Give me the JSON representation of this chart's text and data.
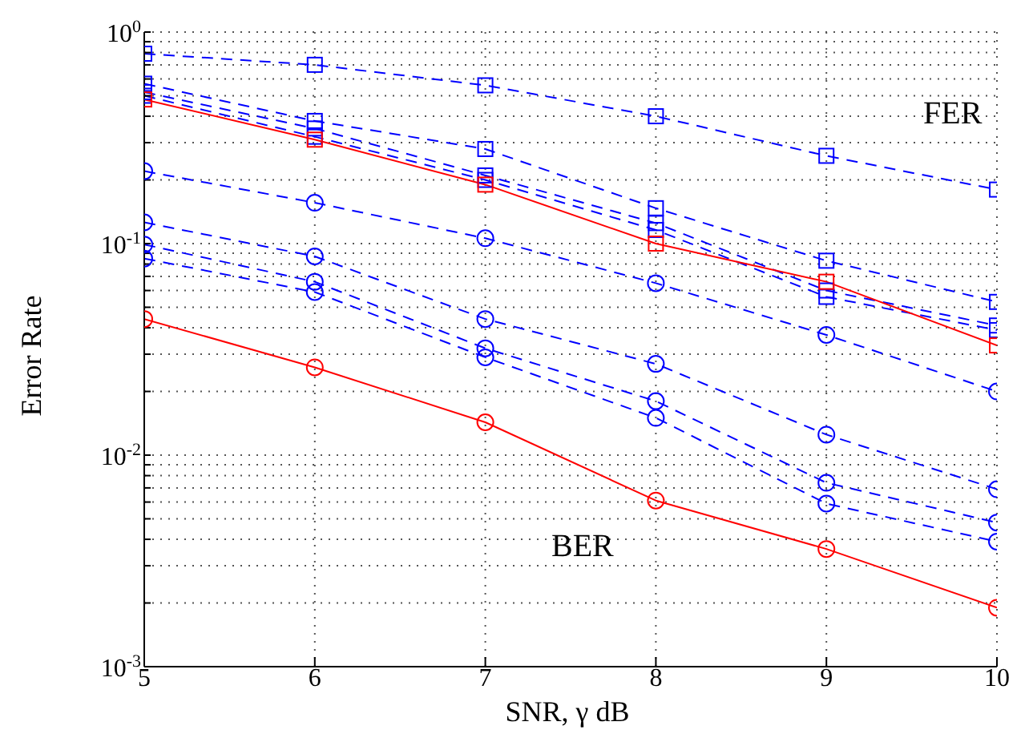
{
  "chart_data": {
    "type": "line",
    "xlabel": "SNR, γ dB",
    "ylabel": "Error Rate",
    "x": [
      5,
      6,
      7,
      8,
      9,
      10
    ],
    "xlim": [
      5,
      10
    ],
    "xticks": [
      5,
      6,
      7,
      8,
      9,
      10
    ],
    "ylim": [
      0.001,
      1
    ],
    "log": "y",
    "grid": true,
    "yticks": [
      {
        "value": 0.001,
        "label": "10$^{-3}$"
      },
      {
        "value": 0.002,
        "label": null
      },
      {
        "value": 0.003,
        "label": null
      },
      {
        "value": 0.004,
        "label": null
      },
      {
        "value": 0.005,
        "label": null
      },
      {
        "value": 0.006,
        "label": null
      },
      {
        "value": 0.007,
        "label": null
      },
      {
        "value": 0.008,
        "label": null
      },
      {
        "value": 0.009,
        "label": null
      },
      {
        "value": 0.01,
        "label": "10$^{-2}$"
      },
      {
        "value": 0.02,
        "label": null
      },
      {
        "value": 0.03,
        "label": null
      },
      {
        "value": 0.04,
        "label": null
      },
      {
        "value": 0.05,
        "label": null
      },
      {
        "value": 0.06,
        "label": null
      },
      {
        "value": 0.07,
        "label": null
      },
      {
        "value": 0.08,
        "label": null
      },
      {
        "value": 0.09,
        "label": null
      },
      {
        "value": 0.1,
        "label": "10$^{-1}$"
      },
      {
        "value": 0.2,
        "label": null
      },
      {
        "value": 0.3,
        "label": null
      },
      {
        "value": 0.4,
        "label": null
      },
      {
        "value": 0.5,
        "label": null
      },
      {
        "value": 0.6,
        "label": null
      },
      {
        "value": 0.7,
        "label": null
      },
      {
        "value": 0.8,
        "label": null
      },
      {
        "value": 0.9,
        "label": null
      },
      {
        "value": 1,
        "label": "10$^{0}$"
      }
    ],
    "annotations": [
      "FER",
      "BER"
    ],
    "series": [
      {
        "color": "#0000ff",
        "marker": "square",
        "line_style": "dashed",
        "values": [
          0.79,
          0.7,
          0.56,
          0.4,
          0.26,
          0.18
        ]
      },
      {
        "color": "#0000ff",
        "marker": "square",
        "line_style": "dashed",
        "values": [
          0.57,
          0.38,
          0.28,
          0.147,
          0.083,
          0.053
        ]
      },
      {
        "color": "#0000ff",
        "marker": "square",
        "line_style": "dashed",
        "values": [
          0.52,
          0.35,
          0.21,
          0.125,
          0.06,
          0.041
        ]
      },
      {
        "color": "#0000ff",
        "marker": "square",
        "line_style": "dashed",
        "values": [
          0.5,
          0.32,
          0.2,
          0.116,
          0.056,
          0.039
        ]
      },
      {
        "color": "#ff0000",
        "marker": "square",
        "line_style": "solid",
        "values": [
          0.48,
          0.31,
          0.19,
          0.1,
          0.066,
          0.033
        ]
      },
      {
        "color": "#0000ff",
        "marker": "circle",
        "line_style": "dashed",
        "values": [
          0.22,
          0.156,
          0.106,
          0.065,
          0.037,
          0.02
        ]
      },
      {
        "color": "#0000ff",
        "marker": "circle",
        "line_style": "dashed",
        "values": [
          0.126,
          0.087,
          0.044,
          0.027,
          0.0125,
          0.0069
        ]
      },
      {
        "color": "#0000ff",
        "marker": "circle",
        "line_style": "dashed",
        "values": [
          0.099,
          0.066,
          0.032,
          0.018,
          0.0074,
          0.0048
        ]
      },
      {
        "color": "#0000ff",
        "marker": "circle",
        "line_style": "dashed",
        "values": [
          0.085,
          0.059,
          0.029,
          0.015,
          0.0059,
          0.0039
        ]
      },
      {
        "color": "#ff0000",
        "marker": "circle",
        "line_style": "solid",
        "values": [
          0.044,
          0.026,
          0.0143,
          0.0061,
          0.0036,
          0.0019
        ]
      }
    ]
  }
}
